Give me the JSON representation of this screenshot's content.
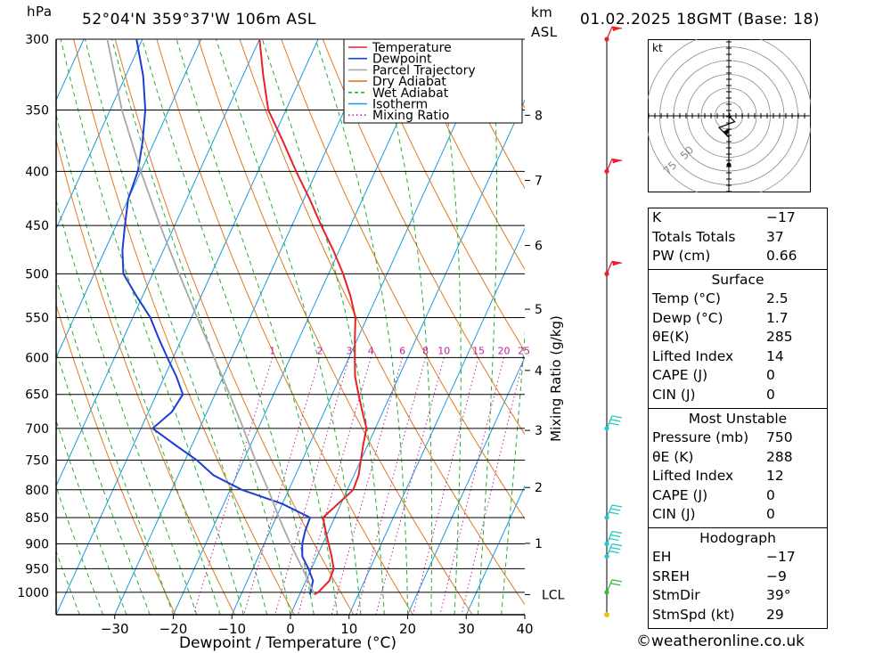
{
  "header": {
    "pressure_unit": "hPa",
    "location": "52°04'N  359°37'W  106m  ASL",
    "height_unit_km": "km",
    "height_unit_asl": "ASL",
    "datetime": "01.02.2025  18GMT  (Base: 18)"
  },
  "chart_data": {
    "type": "line",
    "subtype": "skew-T log-P sounding diagram",
    "xlabel": "Dewpoint / Temperature (°C)",
    "ylabel": "hPa",
    "right_axis_label": "km ASL",
    "mixing_axis_label": "Mixing Ratio (g/kg)",
    "xlim": [
      -40,
      40
    ],
    "ylim": [
      1050,
      300
    ],
    "skew_degC_per_log_pressure": 35.7,
    "x_ticks": [
      -30,
      -20,
      -10,
      0,
      10,
      20,
      30,
      40
    ],
    "x_tick_labels": [
      "−30",
      "−20",
      "−10",
      "0",
      "10",
      "20",
      "30",
      "40"
    ],
    "pressure_levels": [
      300,
      350,
      400,
      450,
      500,
      550,
      600,
      650,
      700,
      750,
      800,
      850,
      900,
      950,
      1000
    ],
    "km_ticks": [
      {
        "label": "8",
        "p": 354
      },
      {
        "label": "7",
        "p": 408
      },
      {
        "label": "6",
        "p": 470
      },
      {
        "label": "5",
        "p": 540
      },
      {
        "label": "4",
        "p": 617
      },
      {
        "label": "3",
        "p": 703
      },
      {
        "label": "2",
        "p": 796
      },
      {
        "label": "1",
        "p": 899
      },
      {
        "label": "LCL",
        "p": 1005
      }
    ],
    "mixing_ratio_labels": [
      "1",
      "2",
      "3",
      "4",
      "6",
      "8",
      "10",
      "15",
      "20",
      "25"
    ],
    "mixing_ratio_values": [
      1,
      2,
      3,
      4,
      6,
      8,
      10,
      15,
      20,
      25
    ],
    "legend": [
      {
        "name": "Temperature",
        "color": "#e8202a",
        "style": "solid"
      },
      {
        "name": "Dewpoint",
        "color": "#1c3fd0",
        "style": "solid"
      },
      {
        "name": "Parcel Trajectory",
        "color": "#a8a8a8",
        "style": "solid"
      },
      {
        "name": "Dry Adiabat",
        "color": "#e07a20",
        "style": "solid"
      },
      {
        "name": "Wet Adiabat",
        "color": "#20b030",
        "style": "dashed"
      },
      {
        "name": "Isotherm",
        "color": "#1a9be0",
        "style": "solid"
      },
      {
        "name": "Mixing Ratio",
        "color": "#c0209a",
        "style": "dotted"
      }
    ],
    "series": [
      {
        "name": "Temperature",
        "color": "#e8202a",
        "points": [
          [
            1005,
            2.5
          ],
          [
            1000,
            3.0
          ],
          [
            975,
            4.0
          ],
          [
            950,
            3.8
          ],
          [
            925,
            2.5
          ],
          [
            900,
            1.0
          ],
          [
            875,
            -0.5
          ],
          [
            850,
            -2.0
          ],
          [
            825,
            -0.5
          ],
          [
            800,
            1.0
          ],
          [
            775,
            0.8
          ],
          [
            750,
            0.0
          ],
          [
            725,
            -0.8
          ],
          [
            700,
            -1.5
          ],
          [
            675,
            -3.5
          ],
          [
            650,
            -5.5
          ],
          [
            625,
            -7.5
          ],
          [
            600,
            -9.0
          ],
          [
            575,
            -10.5
          ],
          [
            550,
            -12.0
          ],
          [
            525,
            -14.5
          ],
          [
            500,
            -17.5
          ],
          [
            475,
            -21.0
          ],
          [
            450,
            -25.0
          ],
          [
            425,
            -29.0
          ],
          [
            400,
            -33.5
          ],
          [
            375,
            -38.0
          ],
          [
            350,
            -43.0
          ],
          [
            325,
            -46.5
          ],
          [
            300,
            -50.0
          ]
        ]
      },
      {
        "name": "Dewpoint",
        "color": "#1c3fd0",
        "points": [
          [
            1005,
            1.7
          ],
          [
            1000,
            1.7
          ],
          [
            975,
            1.2
          ],
          [
            950,
            -0.5
          ],
          [
            925,
            -2.5
          ],
          [
            900,
            -3.5
          ],
          [
            875,
            -4.0
          ],
          [
            850,
            -4.2
          ],
          [
            825,
            -10.0
          ],
          [
            800,
            -18.0
          ],
          [
            775,
            -24.0
          ],
          [
            750,
            -28.0
          ],
          [
            725,
            -33.0
          ],
          [
            700,
            -38.0
          ],
          [
            675,
            -36.0
          ],
          [
            650,
            -35.5
          ],
          [
            625,
            -38.0
          ],
          [
            600,
            -41.0
          ],
          [
            575,
            -44.0
          ],
          [
            550,
            -47.0
          ],
          [
            525,
            -51.0
          ],
          [
            500,
            -55.0
          ],
          [
            475,
            -57.0
          ],
          [
            450,
            -58.5
          ],
          [
            425,
            -60.0
          ],
          [
            400,
            -60.5
          ],
          [
            375,
            -62.0
          ],
          [
            350,
            -64.0
          ],
          [
            325,
            -67.0
          ],
          [
            300,
            -71.0
          ]
        ]
      },
      {
        "name": "Parcel Trajectory",
        "color": "#a8a8a8",
        "points": [
          [
            1005,
            2.5
          ],
          [
            1000,
            2.2
          ],
          [
            950,
            -1.5
          ],
          [
            900,
            -5.5
          ],
          [
            850,
            -9.5
          ],
          [
            800,
            -13.5
          ],
          [
            750,
            -18.0
          ],
          [
            700,
            -22.5
          ],
          [
            650,
            -27.5
          ],
          [
            600,
            -33.0
          ],
          [
            550,
            -39.0
          ],
          [
            500,
            -45.5
          ],
          [
            450,
            -52.5
          ],
          [
            400,
            -60.0
          ],
          [
            350,
            -68.0
          ],
          [
            300,
            -76.0
          ]
        ]
      }
    ]
  },
  "hodograph": {
    "unit_label": "kt",
    "ring_labels": [
      "50",
      "75"
    ],
    "wind_points_kt": [
      [
        0,
        -25
      ],
      [
        0,
        -11
      ],
      [
        -3,
        -8
      ],
      [
        -5,
        -6
      ],
      [
        3,
        -3
      ],
      [
        0,
        0
      ]
    ]
  },
  "indices": {
    "rows": [
      {
        "label": "K",
        "value": "−17"
      },
      {
        "label": "Totals Totals",
        "value": "37"
      },
      {
        "label": "PW (cm)",
        "value": "0.66"
      }
    ]
  },
  "surface": {
    "title": "Surface",
    "rows": [
      {
        "label": "Temp (°C)",
        "value": "2.5"
      },
      {
        "label": "Dewp (°C)",
        "value": "1.7"
      },
      {
        "label": "θE(K)",
        "value": "285"
      },
      {
        "label": "Lifted Index",
        "value": "14"
      },
      {
        "label": "CAPE (J)",
        "value": "0"
      },
      {
        "label": "CIN (J)",
        "value": "0"
      }
    ]
  },
  "most_unstable": {
    "title": "Most Unstable",
    "rows": [
      {
        "label": "Pressure (mb)",
        "value": "750"
      },
      {
        "label": "θE (K)",
        "value": "288"
      },
      {
        "label": "Lifted Index",
        "value": "12"
      },
      {
        "label": "CAPE (J)",
        "value": "0"
      },
      {
        "label": "CIN (J)",
        "value": "0"
      }
    ]
  },
  "hodograph_stats": {
    "title": "Hodograph",
    "rows": [
      {
        "label": "EH",
        "value": "−17"
      },
      {
        "label": "SREH",
        "value": "−9"
      },
      {
        "label": "StmDir",
        "value": "39°"
      },
      {
        "label": "StmSpd (kt)",
        "value": "29"
      }
    ]
  },
  "wind_barbs": [
    {
      "p": 300,
      "color": "#e8202a",
      "flags": 1
    },
    {
      "p": 400,
      "color": "#e8202a",
      "flags": 1
    },
    {
      "p": 500,
      "color": "#e8202a",
      "flags": 1
    },
    {
      "p": 700,
      "color": "#20c8c8",
      "flags": 3
    },
    {
      "p": 850,
      "color": "#20c8c8",
      "flags": 3
    },
    {
      "p": 900,
      "color": "#20c8c8",
      "flags": 3
    },
    {
      "p": 925,
      "color": "#20c8c8",
      "flags": 3
    },
    {
      "p": 1000,
      "color": "#30c030",
      "flags": 2
    }
  ],
  "footer": {
    "copyright_symbol": "©",
    "site": "weatheronline.co.uk"
  }
}
